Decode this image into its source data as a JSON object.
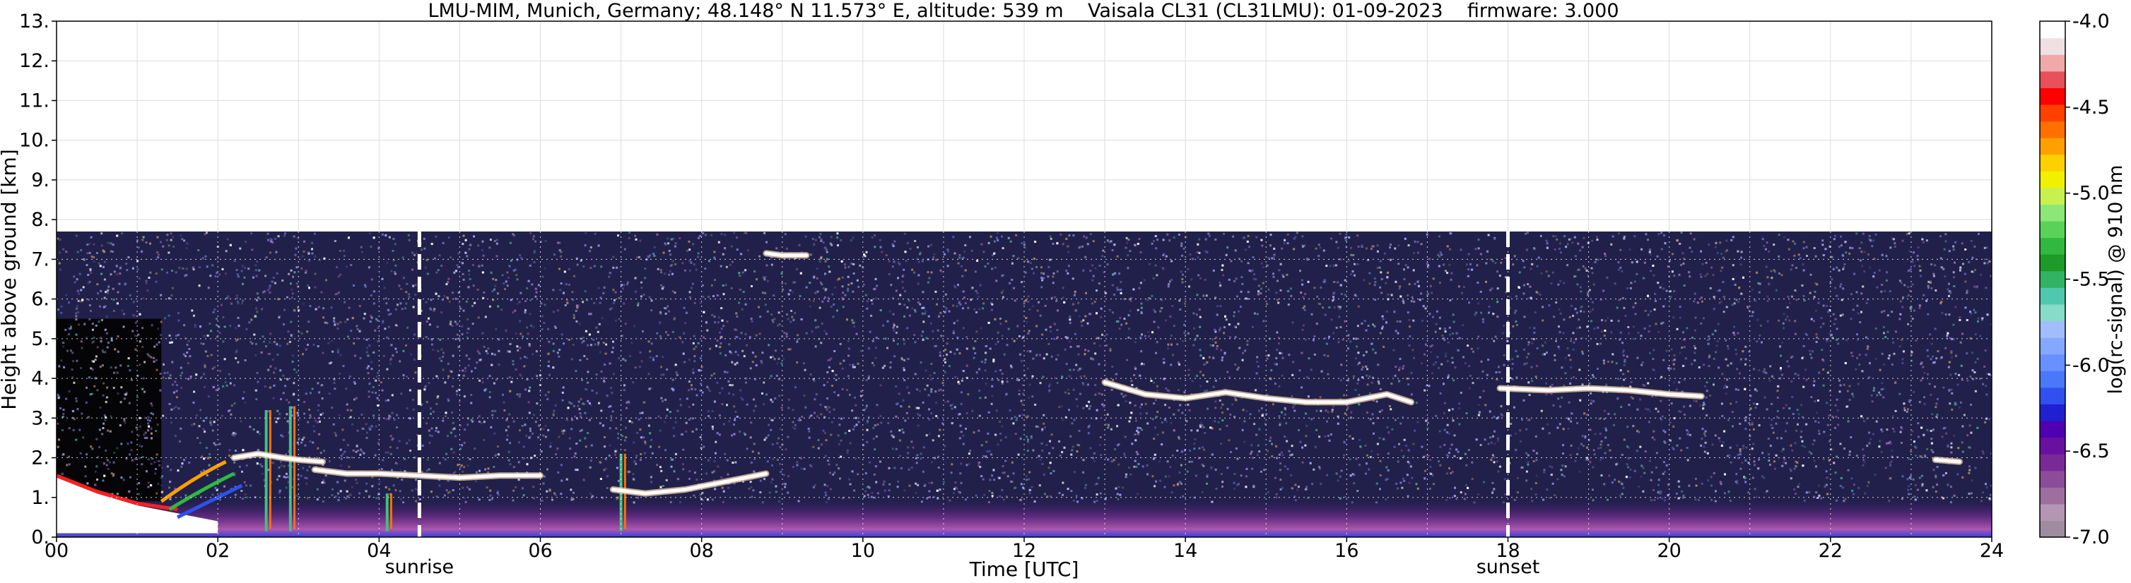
{
  "chart_data": {
    "type": "heatmap",
    "title": "LMU-MIM, Munich, Germany; 48.148° N 11.573° E, altitude: 539 m    Vaisala CL31 (CL31LMU): 01-09-2023    firmware: 3.000",
    "xlabel": "Time [UTC]",
    "ylabel": "Height above ground [km]",
    "colorbar_label": "log(rc-signal) @ 910 nm",
    "xlim": [
      0,
      24
    ],
    "ylim": [
      0,
      13
    ],
    "x_ticks": [
      "00",
      "02",
      "04",
      "06",
      "08",
      "10",
      "12",
      "14",
      "16",
      "18",
      "20",
      "22",
      "24"
    ],
    "y_ticks": [
      "0.",
      "1.",
      "2.",
      "3.",
      "4.",
      "5.",
      "6.",
      "7.",
      "8.",
      "9.",
      "10.",
      "11.",
      "12.",
      "13."
    ],
    "colorbar_range": [
      -7.0,
      -4.0
    ],
    "colorbar_ticks": [
      "-4.0",
      "-4.5",
      "-5.0",
      "-5.5",
      "-6.0",
      "-6.5",
      "-7.0"
    ],
    "colorbar_colors": [
      "#a08ca0",
      "#b496b4",
      "#9e6e9e",
      "#8c4c9a",
      "#7a2a96",
      "#6a10a0",
      "#5000b0",
      "#2020d0",
      "#3050f0",
      "#4a78f8",
      "#6890ff",
      "#84a8ff",
      "#a0beff",
      "#86dcc8",
      "#50c8b0",
      "#30b464",
      "#1e9a28",
      "#30b840",
      "#5ad25a",
      "#8ce678",
      "#c8f050",
      "#f0f000",
      "#ffd000",
      "#ffa000",
      "#ff7000",
      "#ff4000",
      "#ff0000",
      "#e8505a",
      "#f0a8a8",
      "#f0e0e4",
      "#ffffff"
    ],
    "data_range_km": 7.7,
    "vertical_markers": [
      {
        "label": "sunrise",
        "x": 4.5
      },
      {
        "label": "sunset",
        "x": 18.0
      }
    ],
    "cloud_layers": [
      {
        "x": [
          2.2,
          2.5,
          2.8,
          3.0,
          3.3
        ],
        "y": [
          2.0,
          2.1,
          2.0,
          1.95,
          1.9
        ]
      },
      {
        "x": [
          3.2,
          3.6,
          4.0,
          4.5,
          5.0,
          5.5,
          6.0
        ],
        "y": [
          1.7,
          1.6,
          1.6,
          1.55,
          1.5,
          1.55,
          1.55
        ]
      },
      {
        "x": [
          6.9,
          7.3,
          7.8,
          8.3,
          8.8
        ],
        "y": [
          1.2,
          1.1,
          1.2,
          1.4,
          1.6
        ]
      },
      {
        "x": [
          8.8,
          9.0,
          9.3
        ],
        "y": [
          7.15,
          7.1,
          7.1
        ]
      },
      {
        "x": [
          13.0,
          13.5,
          14.0,
          14.5,
          15.0,
          15.5,
          16.0,
          16.5,
          16.8
        ],
        "y": [
          3.9,
          3.6,
          3.5,
          3.65,
          3.5,
          3.4,
          3.4,
          3.6,
          3.4
        ]
      },
      {
        "x": [
          17.9,
          18.5,
          19.0,
          19.5,
          20.0,
          20.4
        ],
        "y": [
          3.75,
          3.7,
          3.75,
          3.7,
          3.6,
          3.55
        ]
      },
      {
        "x": [
          23.3,
          23.6
        ],
        "y": [
          1.95,
          1.9
        ]
      }
    ],
    "grid": true,
    "legend": "colorbar right"
  }
}
